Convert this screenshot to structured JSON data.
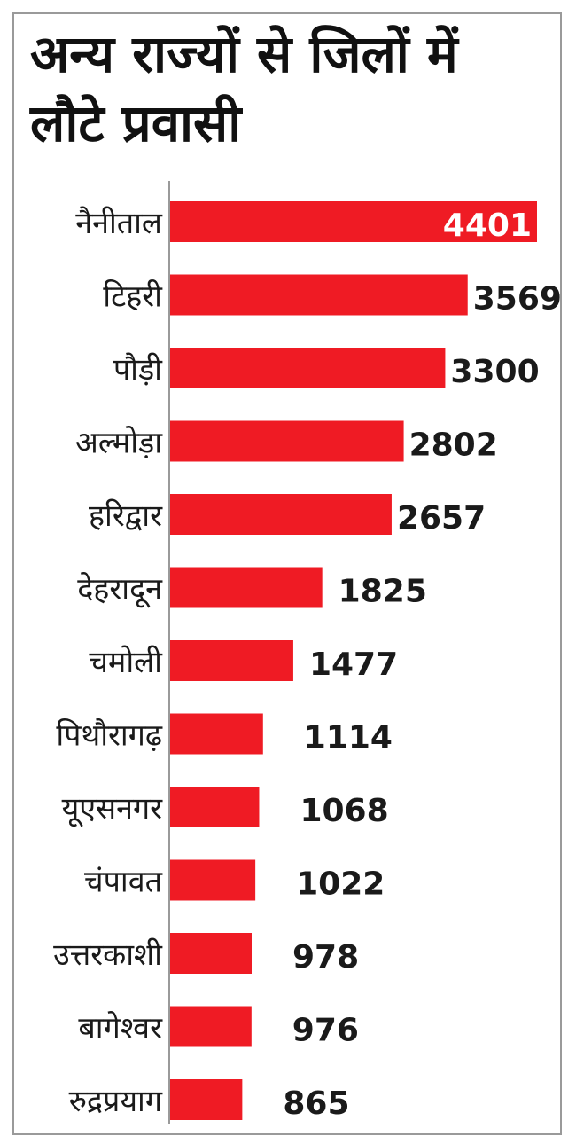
{
  "title": "अन्य राज्यों से जिलों में लौटे प्रवासी",
  "colors": {
    "bar": "#ef1b24",
    "axis": "#9a9a9a",
    "text": "#1a1a1a"
  },
  "chart_data": {
    "type": "bar",
    "orientation": "horizontal",
    "title": "अन्य राज्यों से जिलों में लौटे प्रवासी",
    "categories": [
      "नैनीताल",
      "टिहरी",
      "पौड़ी",
      "अल्मोड़ा",
      "हरिद्वार",
      "देहरादून",
      "चमोली",
      "पिथौरागढ़",
      "यूएसनगर",
      "चंपावत",
      "उत्तरकाशी",
      "बागेश्वर",
      "रुद्रप्रयाग"
    ],
    "values": [
      4401,
      3569,
      3300,
      2802,
      2657,
      1825,
      1477,
      1114,
      1068,
      1022,
      978,
      976,
      865
    ],
    "xlim": [
      0,
      4401
    ],
    "grid": false,
    "legend": "none",
    "data_labels": true
  }
}
